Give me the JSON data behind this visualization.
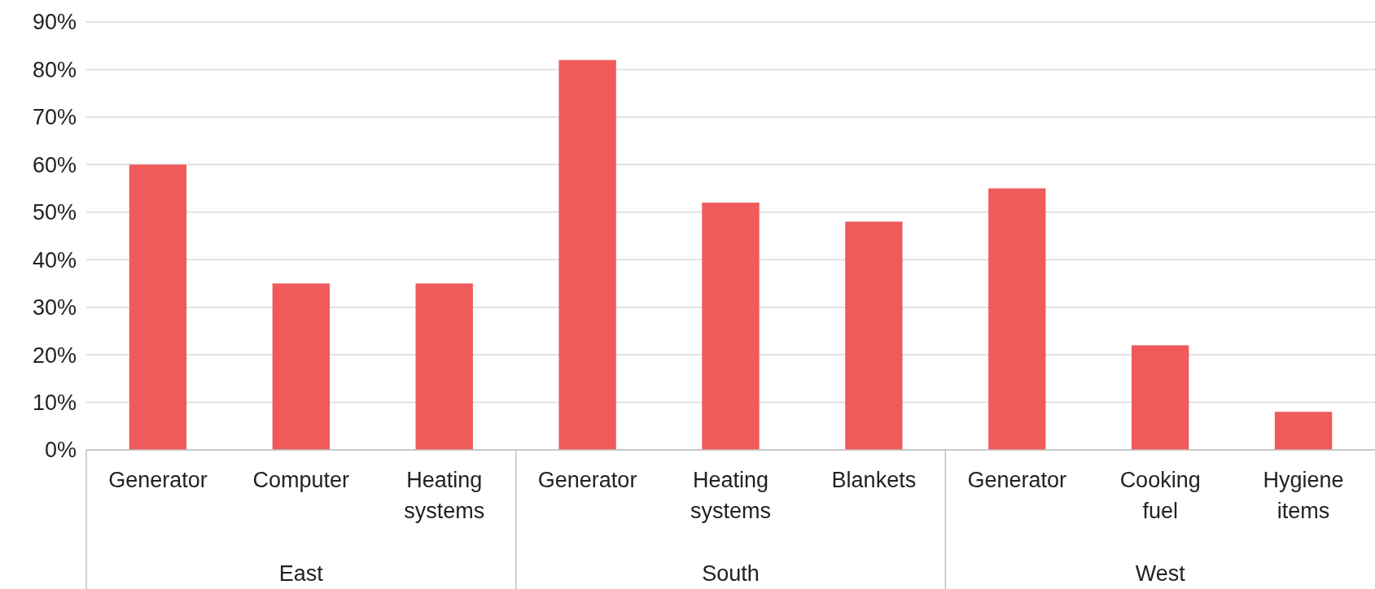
{
  "chart_data": {
    "type": "bar",
    "categories": [
      "Generator",
      "Computer",
      "Heating systems",
      "Generator",
      "Heating systems",
      "Blankets",
      "Generator",
      "Cooking fuel",
      "Hygiene items"
    ],
    "values": [
      60,
      35,
      35,
      82,
      52,
      48,
      55,
      22,
      8
    ],
    "color": "#ef5a5a",
    "ylim": [
      0,
      90
    ],
    "yticks": [
      {
        "value": 0,
        "label": "0%"
      },
      {
        "value": 10,
        "label": "10%"
      },
      {
        "value": 20,
        "label": "20%"
      },
      {
        "value": 30,
        "label": "30%"
      },
      {
        "value": 40,
        "label": "40%"
      },
      {
        "value": 50,
        "label": "50%"
      },
      {
        "value": 60,
        "label": "60%"
      },
      {
        "value": 70,
        "label": "70%"
      },
      {
        "value": 80,
        "label": "80%"
      },
      {
        "value": 90,
        "label": "90%"
      }
    ],
    "grid": "y",
    "annotations": [
      "East",
      "South",
      "West"
    ]
  }
}
